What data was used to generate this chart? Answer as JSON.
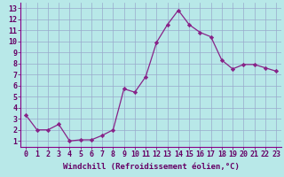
{
  "x": [
    0,
    1,
    2,
    3,
    4,
    5,
    6,
    7,
    8,
    9,
    10,
    11,
    12,
    13,
    14,
    15,
    16,
    17,
    18,
    19,
    20,
    21,
    22,
    23
  ],
  "y": [
    3.3,
    2.0,
    2.0,
    2.5,
    1.0,
    1.1,
    1.1,
    1.5,
    2.0,
    5.7,
    5.4,
    6.8,
    9.9,
    11.5,
    12.8,
    11.5,
    10.8,
    10.4,
    8.3,
    7.5,
    7.9,
    7.9,
    7.6,
    7.3
  ],
  "line_color": "#882288",
  "marker": "D",
  "marker_size": 2.2,
  "bg_color": "#b8e8e8",
  "grid_color": "#99aacc",
  "xlabel": "Windchill (Refroidissement éolien,°C)",
  "xlabel_color": "#660066",
  "xlabel_fontsize": 6.5,
  "xtick_labels": [
    "0",
    "1",
    "2",
    "3",
    "4",
    "5",
    "6",
    "7",
    "8",
    "9",
    "10",
    "11",
    "12",
    "13",
    "14",
    "15",
    "16",
    "17",
    "18",
    "19",
    "20",
    "21",
    "22",
    "23"
  ],
  "ytick_labels": [
    "1",
    "2",
    "3",
    "4",
    "5",
    "6",
    "7",
    "8",
    "9",
    "10",
    "11",
    "12",
    "13"
  ],
  "ylim": [
    0.5,
    13.5
  ],
  "xlim": [
    -0.5,
    23.5
  ],
  "tick_color": "#660066",
  "spine_color": "#880088",
  "tick_fontsize": 6.0,
  "linewidth": 0.9
}
